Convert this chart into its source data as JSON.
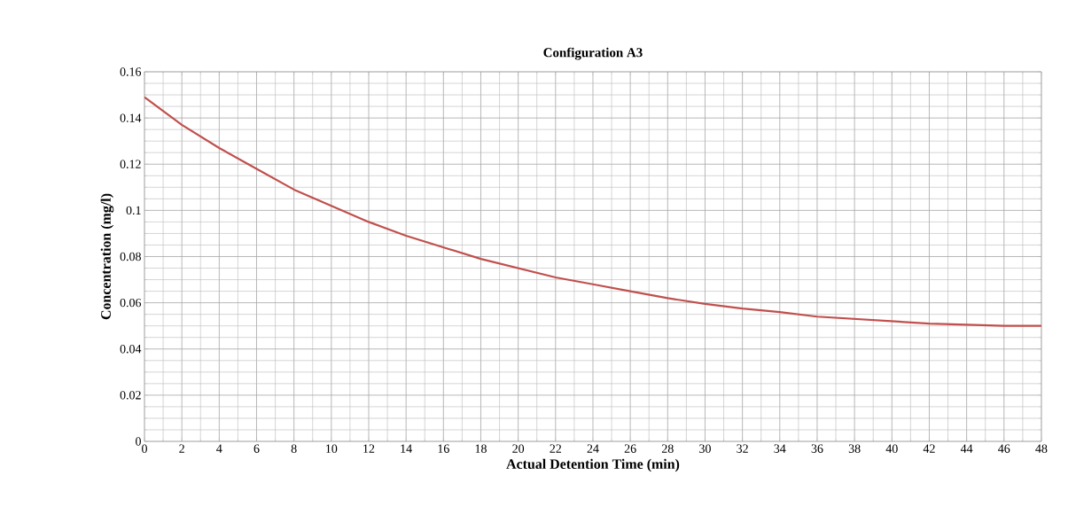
{
  "chart_data": {
    "type": "line",
    "title": "Configuration A3",
    "xlabel": "Actual Detention Time (min)",
    "ylabel": "Concentration (mg/l)",
    "x": [
      0,
      2,
      4,
      6,
      8,
      10,
      12,
      14,
      16,
      18,
      20,
      22,
      24,
      26,
      28,
      30,
      32,
      34,
      36,
      38,
      40,
      42,
      44,
      46,
      48
    ],
    "series": [
      {
        "color": "#c0504d",
        "values": [
          0.149,
          0.137,
          0.127,
          0.118,
          0.109,
          0.102,
          0.095,
          0.089,
          0.084,
          0.079,
          0.075,
          0.071,
          0.068,
          0.065,
          0.062,
          0.0595,
          0.0575,
          0.056,
          0.054,
          0.053,
          0.052,
          0.051,
          0.0505,
          0.05,
          0.05
        ]
      }
    ],
    "xlim": [
      0,
      48
    ],
    "xticks": [
      0,
      2,
      4,
      6,
      8,
      10,
      12,
      14,
      16,
      18,
      20,
      22,
      24,
      26,
      28,
      30,
      32,
      34,
      36,
      38,
      40,
      42,
      44,
      46,
      48
    ],
    "ylim": [
      0,
      0.16
    ],
    "yticks": [
      0,
      0.02,
      0.04,
      0.06,
      0.08,
      0.1,
      0.12,
      0.14,
      0.16
    ],
    "grid": true,
    "marker": "none",
    "line_style": "solid"
  }
}
